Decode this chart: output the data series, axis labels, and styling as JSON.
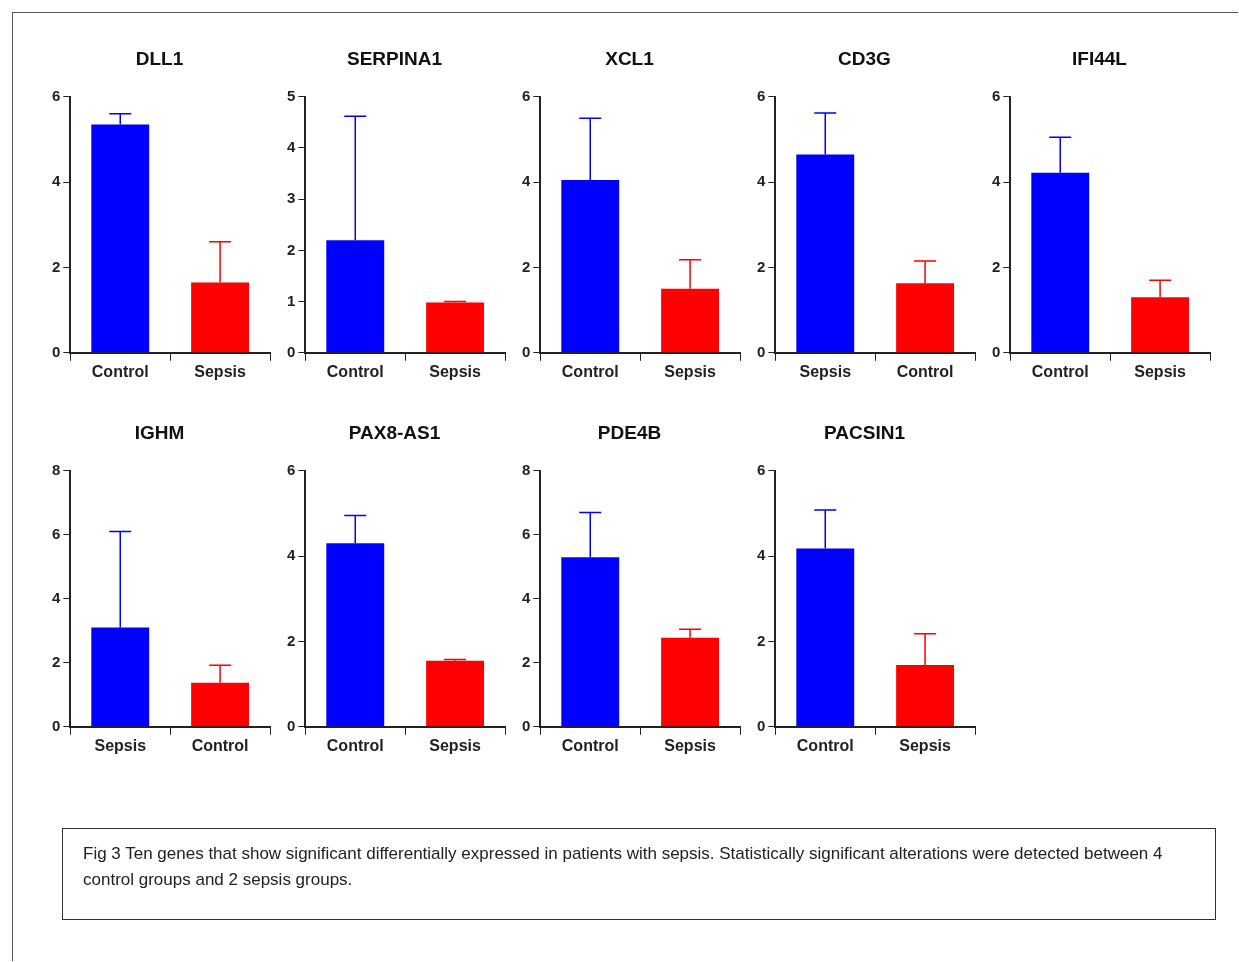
{
  "chart_data": [
    {
      "type": "bar",
      "title": "DLL1",
      "categories": [
        "Control",
        "Sepsis"
      ],
      "values": [
        5.35,
        1.65
      ],
      "colors": [
        "#0000ff",
        "#ff0000"
      ],
      "errors": [
        [
          5.35,
          5.6
        ],
        [
          1.65,
          2.6
        ]
      ],
      "ylim": [
        0,
        6
      ],
      "yticks": [
        0,
        2,
        4,
        6
      ],
      "annotations": [
        "Fig 3 Ten genes that show significant differentially expressed in patients with sepsis. Statistically significant alterations were detected between 4 control groups and 2 sepsis groups."
      ]
    },
    {
      "type": "bar",
      "title": "SERPINA1",
      "categories": [
        "Control",
        "Sepsis"
      ],
      "values": [
        2.2,
        0.98
      ],
      "colors": [
        "#0000ff",
        "#ff0000"
      ],
      "errors": [
        [
          2.2,
          4.62
        ],
        [
          0.98,
          1.0
        ]
      ],
      "ylim": [
        0,
        5
      ],
      "yticks": [
        0,
        1,
        2,
        3,
        4,
        5
      ]
    },
    {
      "type": "bar",
      "title": "XCL1",
      "categories": [
        "Control",
        "Sepsis"
      ],
      "values": [
        4.05,
        1.5
      ],
      "colors": [
        "#0000ff",
        "#ff0000"
      ],
      "errors": [
        [
          4.05,
          5.5
        ],
        [
          1.5,
          2.18
        ]
      ],
      "ylim": [
        0,
        6
      ],
      "yticks": [
        0,
        2,
        4,
        6
      ]
    },
    {
      "type": "bar",
      "title": "CD3G",
      "categories": [
        "Sepsis",
        "Control"
      ],
      "values": [
        4.65,
        1.63
      ],
      "colors": [
        "#0000ff",
        "#ff0000"
      ],
      "errors": [
        [
          4.65,
          5.62
        ],
        [
          1.63,
          2.15
        ]
      ],
      "ylim": [
        0,
        6
      ],
      "yticks": [
        0,
        2,
        4,
        6
      ]
    },
    {
      "type": "bar",
      "title": "IFI44L",
      "categories": [
        "Control",
        "Sepsis"
      ],
      "values": [
        4.22,
        1.3
      ],
      "colors": [
        "#0000ff",
        "#ff0000"
      ],
      "errors": [
        [
          4.22,
          5.05
        ],
        [
          1.3,
          1.7
        ]
      ],
      "ylim": [
        0,
        6
      ],
      "yticks": [
        0,
        2,
        4,
        6
      ]
    },
    {
      "type": "bar",
      "title": "IGHM",
      "categories": [
        "Sepsis",
        "Control"
      ],
      "values": [
        3.1,
        1.38
      ],
      "colors": [
        "#0000ff",
        "#ff0000"
      ],
      "errors": [
        [
          3.1,
          6.1
        ],
        [
          1.38,
          1.92
        ]
      ],
      "ylim": [
        0,
        8
      ],
      "yticks": [
        0,
        2,
        4,
        6,
        8
      ]
    },
    {
      "type": "bar",
      "title": "PAX8-AS1",
      "categories": [
        "Control",
        "Sepsis"
      ],
      "values": [
        4.3,
        1.55
      ],
      "colors": [
        "#0000ff",
        "#ff0000"
      ],
      "errors": [
        [
          4.3,
          4.95
        ],
        [
          1.55,
          1.58
        ]
      ],
      "ylim": [
        0,
        6
      ],
      "yticks": [
        0,
        2,
        4,
        6
      ]
    },
    {
      "type": "bar",
      "title": "PDE4B",
      "categories": [
        "Control",
        "Sepsis"
      ],
      "values": [
        5.3,
        2.78
      ],
      "colors": [
        "#0000ff",
        "#ff0000"
      ],
      "errors": [
        [
          5.3,
          6.7
        ],
        [
          2.78,
          3.05
        ]
      ],
      "ylim": [
        0,
        8
      ],
      "yticks": [
        0,
        2,
        4,
        6,
        8
      ]
    },
    {
      "type": "bar",
      "title": "PACSIN1",
      "categories": [
        "Control",
        "Sepsis"
      ],
      "values": [
        4.18,
        1.45
      ],
      "colors": [
        "#0000ff",
        "#ff0000"
      ],
      "errors": [
        [
          4.18,
          5.08
        ],
        [
          1.45,
          2.18
        ]
      ],
      "ylim": [
        0,
        6
      ],
      "yticks": [
        0,
        2,
        4,
        6
      ]
    }
  ]
}
